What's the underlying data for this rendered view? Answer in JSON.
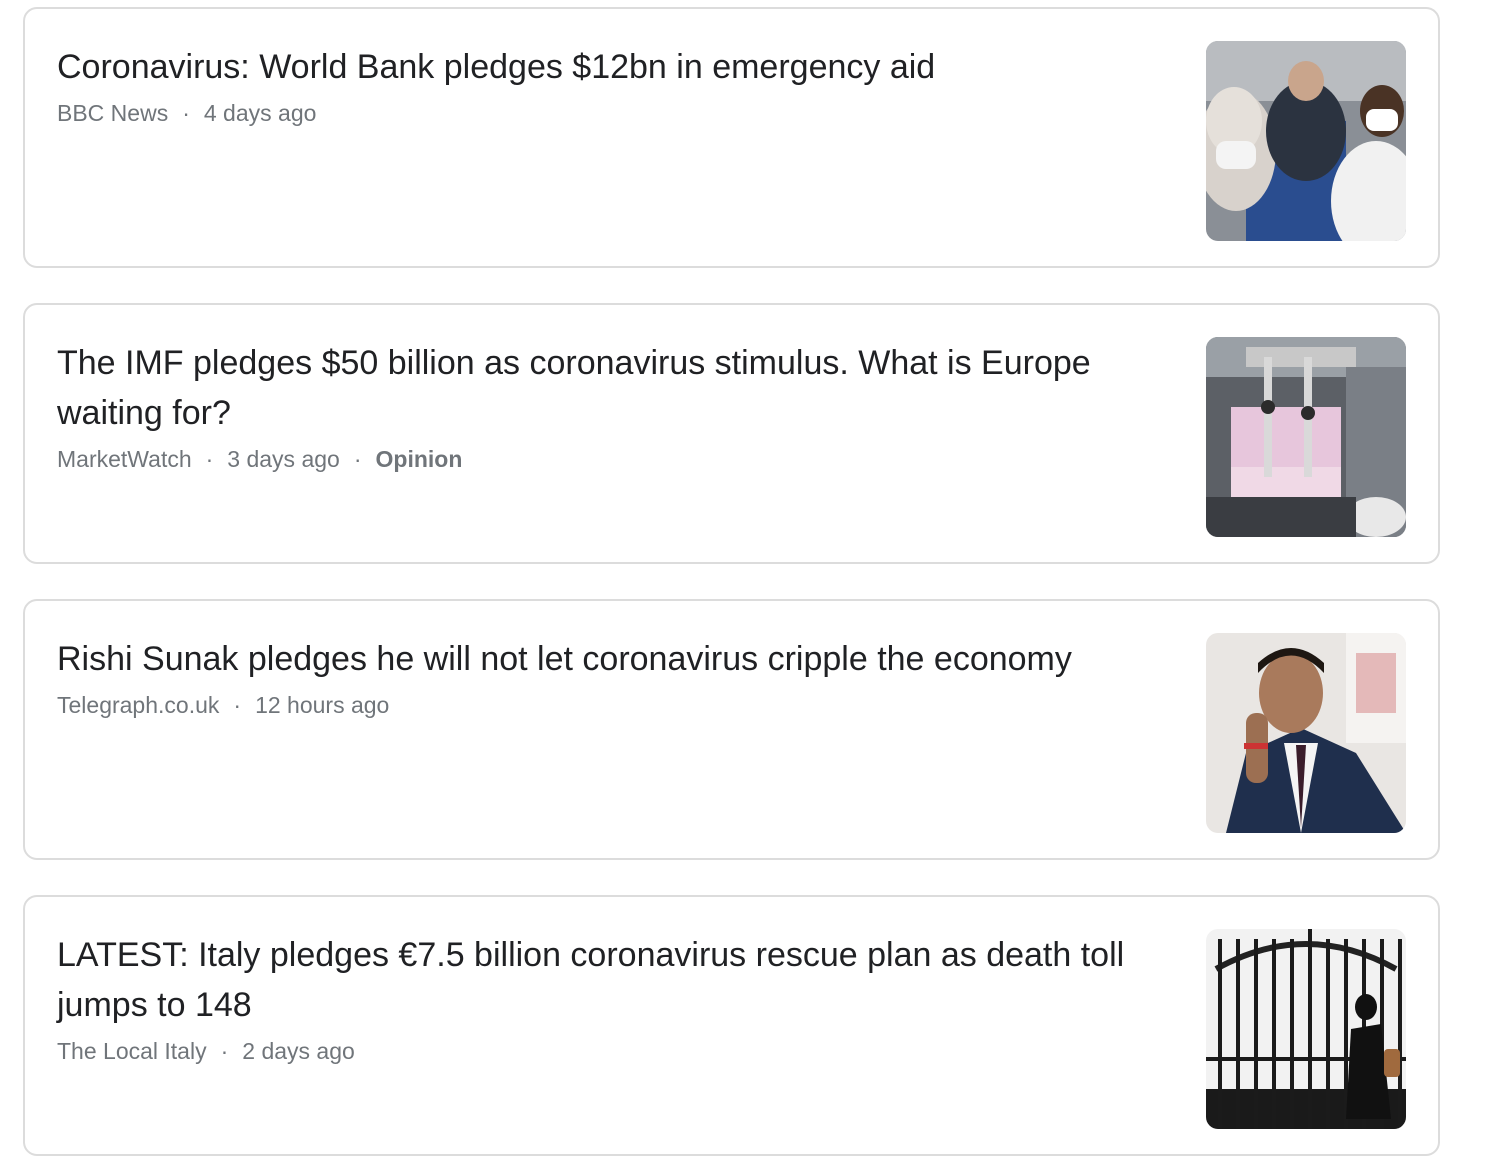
{
  "articles": [
    {
      "headline": "Coronavirus: World Bank pledges $12bn in emergency aid",
      "source": "BBC News",
      "time": "4 days ago",
      "tag": "",
      "sep": "·",
      "thumb_icon": "masked-commuters-photo"
    },
    {
      "headline": "The IMF pledges $50 billion as coronavirus stimulus. What is Europe waiting for?",
      "source": "MarketWatch",
      "time": "3 days ago",
      "tag": "Opinion",
      "sep": "·",
      "thumb_icon": "mask-factory-photo"
    },
    {
      "headline": "Rishi Sunak pledges he will not let coronavirus cripple the economy",
      "source": "Telegraph.co.uk",
      "time": "12 hours ago",
      "tag": "",
      "sep": "·",
      "thumb_icon": "portrait-photo"
    },
    {
      "headline": "LATEST: Italy pledges €7.5 billion coronavirus rescue plan as death toll jumps to 148",
      "source": "The Local Italy",
      "time": "2 days ago",
      "tag": "",
      "sep": "·",
      "thumb_icon": "iron-gate-photo"
    }
  ]
}
